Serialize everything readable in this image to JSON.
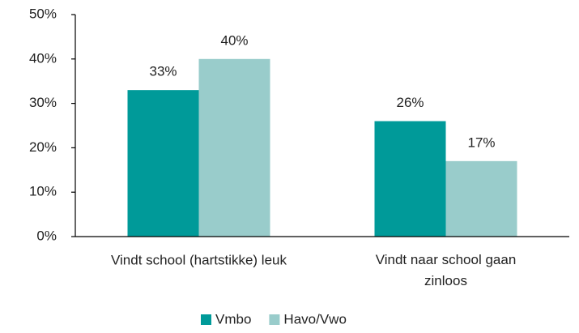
{
  "chart_data": {
    "type": "bar",
    "categories": [
      "Vindt school (hartstikke) leuk",
      "Vindt naar school gaan zinloos"
    ],
    "series": [
      {
        "name": "Vmbo",
        "color": "#009a99",
        "values": [
          33,
          26
        ],
        "value_labels": [
          "33%",
          "26%"
        ]
      },
      {
        "name": "Havo/Vwo",
        "color": "#99cccb",
        "values": [
          40,
          17
        ],
        "value_labels": [
          "40%",
          "17%"
        ]
      }
    ],
    "ylim": [
      0,
      50
    ],
    "yticks": [
      {
        "value": 0,
        "label": "0%"
      },
      {
        "value": 10,
        "label": "10%"
      },
      {
        "value": 20,
        "label": "20%"
      },
      {
        "value": 30,
        "label": "30%"
      },
      {
        "value": 40,
        "label": "40%"
      },
      {
        "value": 50,
        "label": "50%"
      }
    ],
    "legend": "bottom"
  }
}
